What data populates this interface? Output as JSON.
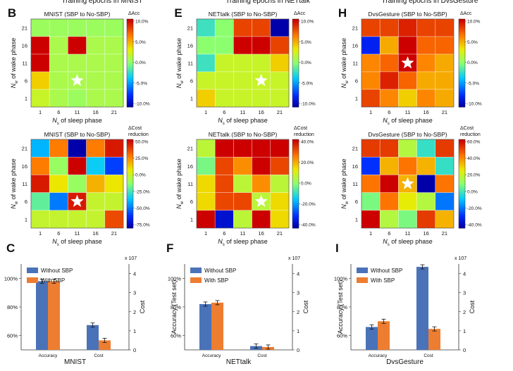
{
  "header": {
    "titles": [
      "Training epochs in MNIST",
      "Training epochs in NETtalk",
      "Training epochs in DvsGesture"
    ]
  },
  "axes": {
    "heat_x_ticks": [
      "1",
      "6",
      "11",
      "16",
      "21"
    ],
    "heat_y_ticks": [
      "1",
      "6",
      "11",
      "16",
      "21"
    ],
    "heat_xlabel": "N_s of sleep phase",
    "heat_ylabel": "N_w of wake phase",
    "bar_ylabel": "Accuracy (Test set)",
    "bar_right_label": "Cost",
    "bar_right_ticks": [
      "0",
      "1",
      "2",
      "3",
      "4"
    ],
    "bar_exponent": "x 10^7",
    "bar_categories": [
      "Accuracy",
      "Cost"
    ]
  },
  "colorbars": {
    "acc_title": "ΔAcc",
    "acc_ticks": [
      "10.0%",
      "5.0%",
      "0.0%",
      "-5.0%",
      "-10.0%"
    ],
    "cost_title_line1": "ΔCost",
    "cost_title_line2": "reduction",
    "cost_ticks": [
      [
        "50.0%",
        "25.0%",
        "0.0%",
        "-25.0%",
        "-50.0%",
        "-75.0%"
      ],
      [
        "40.0%",
        "20.0%",
        "0.0%",
        "-20.0%",
        "-40.0%"
      ],
      [
        "60.0%",
        "40.0%",
        "20.0%",
        "0.0%",
        "-20.0%",
        "-40.0%"
      ]
    ]
  },
  "colors": {
    "without_sbp": "#4a72b8",
    "with_sbp": "#ed7d31",
    "star": "#ffffff"
  },
  "chart_data": [
    {
      "type": "heatmap",
      "panel": "B",
      "title": "MNIST (SBP to No-SBP)",
      "x": [
        1,
        6,
        11,
        16,
        21
      ],
      "y": [
        1,
        6,
        11,
        16,
        21
      ],
      "vmin": -10,
      "vmax": 10,
      "values": [
        [
          0.5,
          0.5,
          0.5,
          0.5,
          0.5
        ],
        [
          10,
          1,
          10,
          1,
          1
        ],
        [
          10,
          1,
          1,
          1,
          1
        ],
        [
          4,
          1,
          1,
          1,
          1
        ],
        [
          2,
          1,
          0.5,
          1,
          1
        ]
      ],
      "star": [
        11,
        6
      ],
      "colorbar": "ΔAcc"
    },
    {
      "type": "heatmap",
      "panel": "",
      "title": "MNIST (SBP to No-SBP)",
      "x": [
        1,
        6,
        11,
        16,
        21
      ],
      "y": [
        1,
        6,
        11,
        16,
        21
      ],
      "vmin": -80,
      "vmax": 55,
      "values": [
        [
          -40,
          30,
          -80,
          30,
          50
        ],
        [
          30,
          -10,
          55,
          -35,
          -60
        ],
        [
          50,
          10,
          -10,
          20,
          10
        ],
        [
          -20,
          -50,
          50,
          0,
          0
        ],
        [
          0,
          0,
          0,
          0,
          40
        ]
      ],
      "star": [
        11,
        6
      ],
      "colorbar": "ΔCost reduction"
    },
    {
      "type": "heatmap",
      "panel": "E",
      "title": "NETtalk (SBP to No-SBP)",
      "x": [
        1,
        6,
        11,
        16,
        21
      ],
      "y": [
        1,
        6,
        11,
        16,
        21
      ],
      "vmin": -10,
      "vmax": 10,
      "values": [
        [
          -2,
          0,
          8,
          8,
          -10
        ],
        [
          0,
          0,
          10,
          10,
          8
        ],
        [
          -2,
          2,
          2,
          2,
          4
        ],
        [
          2,
          2,
          2,
          2,
          2
        ],
        [
          4,
          2,
          2,
          2,
          2
        ]
      ],
      "star": [
        16,
        6
      ],
      "colorbar": "ΔAcc"
    },
    {
      "type": "heatmap",
      "panel": "",
      "title": "NETtalk (SBP to No-SBP)",
      "x": [
        1,
        6,
        11,
        16,
        21
      ],
      "y": [
        1,
        6,
        11,
        16,
        21
      ],
      "vmin": -45,
      "vmax": 50,
      "values": [
        [
          10,
          50,
          50,
          50,
          50
        ],
        [
          0,
          40,
          30,
          50,
          40
        ],
        [
          20,
          40,
          10,
          30,
          10
        ],
        [
          20,
          40,
          40,
          10,
          20
        ],
        [
          50,
          -40,
          10,
          50,
          20
        ]
      ],
      "star": [
        16,
        6
      ],
      "colorbar": "ΔCost reduction"
    },
    {
      "type": "heatmap",
      "panel": "H",
      "title": "DvsGesture (SBP to No-SBP)",
      "x": [
        1,
        6,
        11,
        16,
        21
      ],
      "y": [
        1,
        6,
        11,
        16,
        21
      ],
      "vmin": -10,
      "vmax": 10,
      "values": [
        [
          8,
          8,
          9,
          8,
          8
        ],
        [
          -8,
          5,
          10,
          7,
          7
        ],
        [
          6,
          7,
          10,
          6,
          5
        ],
        [
          6,
          9,
          7,
          5,
          5
        ],
        [
          8,
          6,
          4,
          6,
          5
        ]
      ],
      "star": [
        11,
        11
      ],
      "colorbar": "ΔAcc"
    },
    {
      "type": "heatmap",
      "panel": "",
      "title": "DvsGesture (SBP to No-SBP)",
      "x": [
        1,
        6,
        11,
        16,
        21
      ],
      "y": [
        1,
        6,
        11,
        16,
        21
      ],
      "vmin": -45,
      "vmax": 70,
      "values": [
        [
          60,
          60,
          20,
          0,
          60
        ],
        [
          -30,
          40,
          50,
          40,
          0
        ],
        [
          50,
          70,
          40,
          -45,
          50
        ],
        [
          10,
          50,
          30,
          20,
          -20
        ],
        [
          70,
          20,
          10,
          60,
          40
        ]
      ],
      "star": [
        11,
        11
      ],
      "colorbar": "ΔCost reduction"
    },
    {
      "type": "bar",
      "panel": "C",
      "dataset": "MNIST",
      "categories": [
        "Accuracy",
        "Cost"
      ],
      "series": [
        {
          "name": "Without SBP",
          "accuracy": 98,
          "cost": 1.3
        },
        {
          "name": "With SBP",
          "accuracy": 98,
          "cost": 0.5
        }
      ],
      "ylim": [
        50,
        110
      ],
      "yticks": [
        "60%",
        "80%",
        "100%"
      ],
      "y2lim": [
        0,
        4.5
      ],
      "y2_scale": "x 10^7"
    },
    {
      "type": "bar",
      "panel": "F",
      "dataset": "NETtalk",
      "categories": [
        "Accuracy",
        "Cost"
      ],
      "series": [
        {
          "name": "Without SBP",
          "accuracy": 82,
          "cost": 0.2
        },
        {
          "name": "With SBP",
          "accuracy": 83,
          "cost": 0.15
        }
      ],
      "ylim": [
        50,
        110
      ],
      "yticks": [
        "60%",
        "80%",
        "100%"
      ],
      "y2lim": [
        0,
        4.5
      ],
      "y2_scale": "x 10^7"
    },
    {
      "type": "bar",
      "panel": "I",
      "dataset": "DvsGesture",
      "categories": [
        "Accuracy",
        "Cost"
      ],
      "series": [
        {
          "name": "Without SBP",
          "accuracy": 66,
          "cost": 4.35
        },
        {
          "name": "With SBP",
          "accuracy": 70,
          "cost": 1.1
        }
      ],
      "ylim": [
        50,
        110
      ],
      "yticks": [
        "60%",
        "80%",
        "100%"
      ],
      "y2lim": [
        0,
        4.5
      ],
      "y2_scale": "x 10^7"
    }
  ]
}
